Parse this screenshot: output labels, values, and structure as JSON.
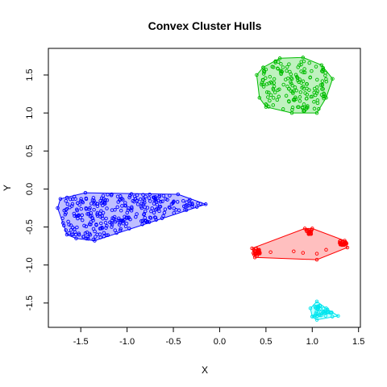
{
  "chart_data": {
    "type": "scatter",
    "title": "Convex Cluster Hulls",
    "xlabel": "X",
    "ylabel": "Y",
    "xlim": [
      -1.85,
      1.52
    ],
    "ylim": [
      -1.82,
      1.85
    ],
    "xticks": [
      -1.5,
      -1.0,
      -0.5,
      0.0,
      0.5,
      1.0,
      1.5
    ],
    "xtick_labels": [
      "-1.5",
      "-1.0",
      "-0.5",
      "0.0",
      "0.5",
      "1.0",
      "1.5"
    ],
    "yticks": [
      -1.5,
      -1.0,
      -0.5,
      0.0,
      0.5,
      1.0,
      1.5
    ],
    "ytick_labels": [
      "-1.5",
      "-1.0",
      "-0.5",
      "0.0",
      "0.5",
      "1.0",
      "1.5"
    ],
    "grid": false,
    "legend": "none",
    "clusters": [
      {
        "color": "#0000ff",
        "fill": "rgba(0,0,255,0.25)",
        "hull": [
          [
            -1.75,
            -0.25
          ],
          [
            -1.65,
            -0.6
          ],
          [
            -1.55,
            -0.65
          ],
          [
            -1.35,
            -0.68
          ],
          [
            -0.15,
            -0.2
          ],
          [
            -0.45,
            -0.07
          ],
          [
            -1.45,
            -0.05
          ],
          [
            -1.72,
            -0.13
          ]
        ],
        "spread": {
          "x": [
            -1.7,
            -0.2
          ],
          "y": [
            -0.68,
            -0.06
          ]
        },
        "count": 300
      },
      {
        "color": "#00bb00",
        "fill": "rgba(0,200,0,0.25)",
        "hull": [
          [
            0.43,
            1.2
          ],
          [
            0.5,
            1.08
          ],
          [
            0.78,
            1.0
          ],
          [
            1.05,
            1.0
          ],
          [
            1.15,
            1.2
          ],
          [
            1.22,
            1.45
          ],
          [
            1.1,
            1.63
          ],
          [
            0.9,
            1.73
          ],
          [
            0.65,
            1.72
          ],
          [
            0.47,
            1.6
          ],
          [
            0.4,
            1.5
          ]
        ],
        "spread": {
          "x": [
            0.45,
            1.18
          ],
          "y": [
            1.02,
            1.7
          ]
        },
        "count": 170
      },
      {
        "color": "#ff0000",
        "fill": "rgba(255,0,0,0.25)",
        "hull": [
          [
            0.35,
            -0.78
          ],
          [
            0.38,
            -0.9
          ],
          [
            1.05,
            -0.93
          ],
          [
            1.38,
            -0.77
          ],
          [
            1.35,
            -0.68
          ],
          [
            1.0,
            -0.52
          ],
          [
            0.92,
            -0.52
          ]
        ],
        "sub": [
          {
            "cx": 0.4,
            "cy": -0.83,
            "r": [
              0.04,
              0.05
            ],
            "n": 30
          },
          {
            "cx": 0.97,
            "cy": -0.56,
            "r": [
              0.04,
              0.04
            ],
            "n": 20
          },
          {
            "cx": 1.33,
            "cy": -0.71,
            "r": [
              0.05,
              0.03
            ],
            "n": 28
          }
        ],
        "extra": [
          [
            0.55,
            -0.83
          ],
          [
            0.8,
            -0.82
          ],
          [
            1.05,
            -0.85
          ],
          [
            1.15,
            -0.8
          ],
          [
            0.9,
            -0.84
          ]
        ]
      },
      {
        "color": "#00e5ee",
        "fill": "rgba(0,255,255,0.25)",
        "hull": [
          [
            0.98,
            -1.57
          ],
          [
            1.0,
            -1.68
          ],
          [
            1.05,
            -1.72
          ],
          [
            1.28,
            -1.67
          ],
          [
            1.15,
            -1.57
          ],
          [
            1.05,
            -1.48
          ]
        ],
        "spread": {
          "x": [
            1.0,
            1.22
          ],
          "y": [
            -1.68,
            -1.52
          ]
        },
        "count": 45
      }
    ]
  }
}
